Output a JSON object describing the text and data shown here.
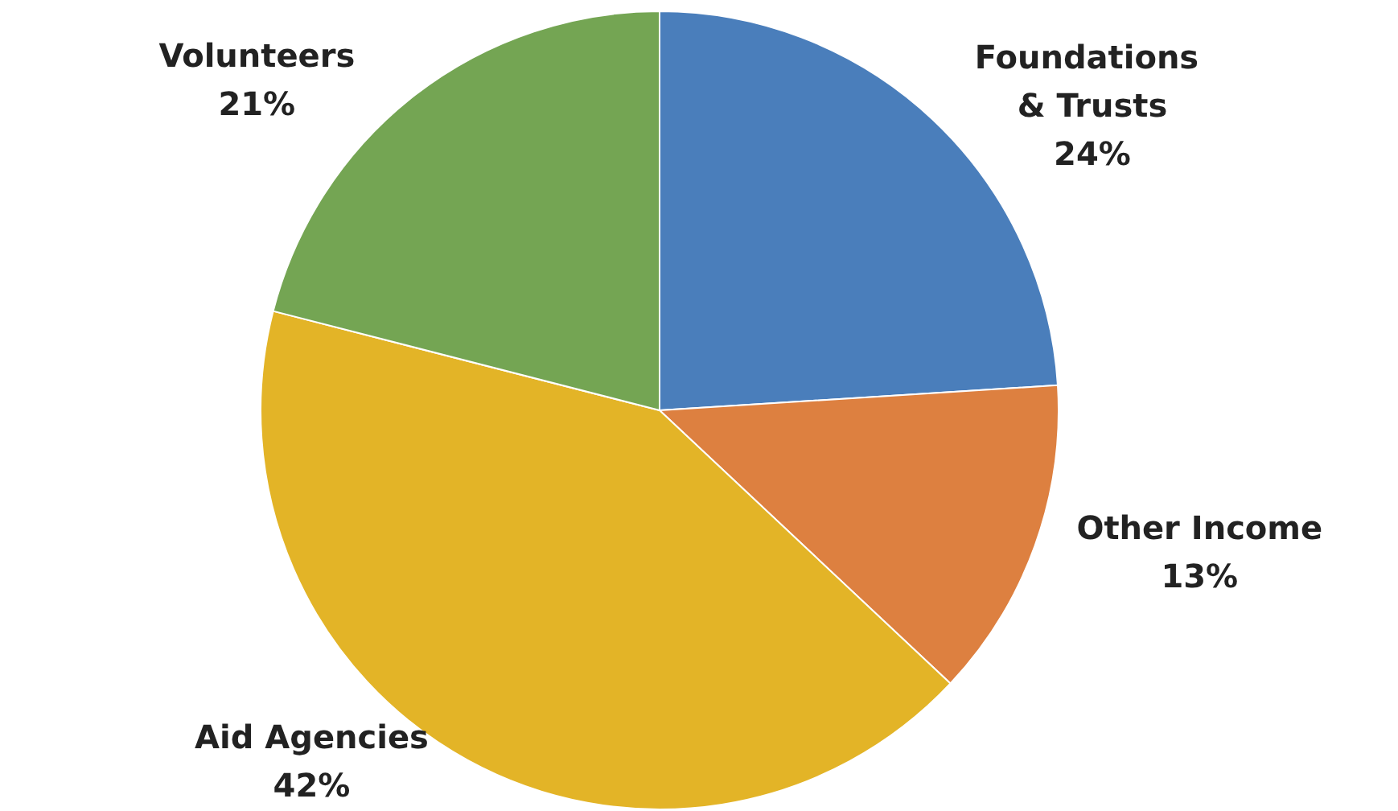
{
  "chart_data": {
    "type": "pie",
    "categories": [
      "Foundations & Trusts",
      "Other Income",
      "Aid Agencies",
      "Volunteers"
    ],
    "values": [
      24,
      13,
      42,
      21
    ],
    "colors": [
      "#4a7ebb",
      "#dd8040",
      "#e3b427",
      "#74a553"
    ],
    "value_labels": [
      "24%",
      "13%",
      "42%",
      "21%"
    ],
    "legend": false
  }
}
